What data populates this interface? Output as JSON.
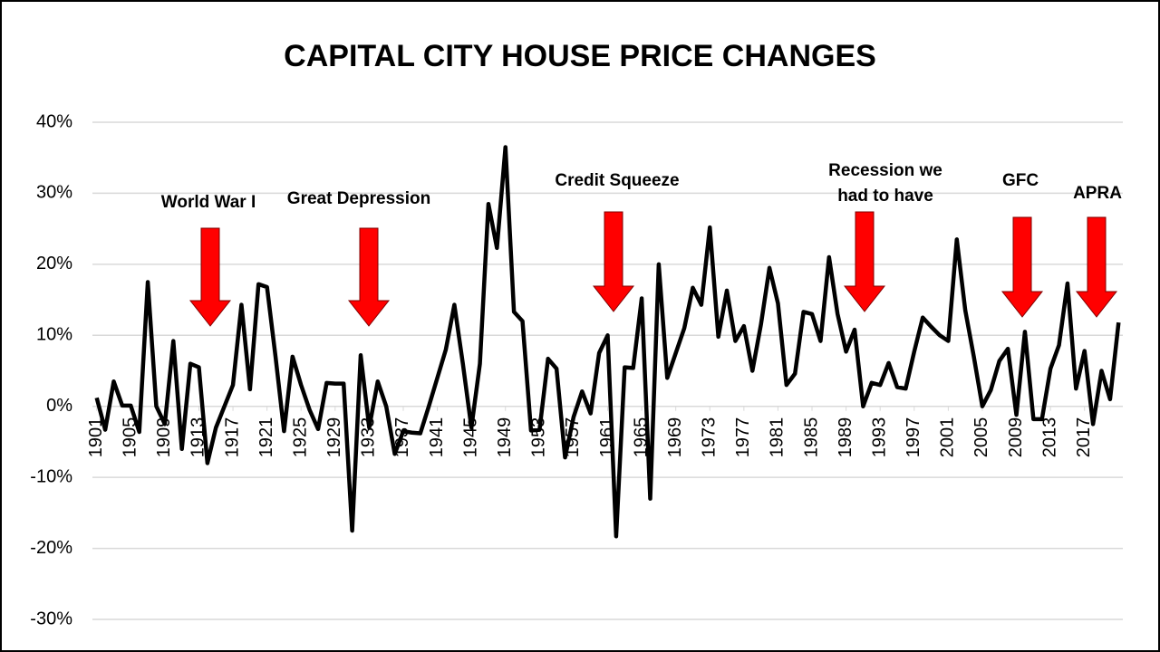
{
  "chart_data": {
    "type": "line",
    "title": "CAPITAL CITY HOUSE PRICE CHANGES",
    "x": [
      1901,
      1902,
      1903,
      1904,
      1905,
      1906,
      1907,
      1908,
      1909,
      1910,
      1911,
      1912,
      1913,
      1914,
      1915,
      1916,
      1917,
      1918,
      1919,
      1920,
      1921,
      1922,
      1923,
      1924,
      1925,
      1926,
      1927,
      1928,
      1929,
      1930,
      1931,
      1932,
      1933,
      1934,
      1935,
      1936,
      1937,
      1938,
      1939,
      1940,
      1941,
      1942,
      1943,
      1944,
      1945,
      1946,
      1947,
      1948,
      1949,
      1950,
      1951,
      1952,
      1953,
      1954,
      1955,
      1956,
      1957,
      1958,
      1959,
      1960,
      1961,
      1962,
      1963,
      1964,
      1965,
      1966,
      1967,
      1968,
      1969,
      1970,
      1971,
      1972,
      1973,
      1974,
      1975,
      1976,
      1977,
      1978,
      1979,
      1980,
      1981,
      1982,
      1983,
      1984,
      1985,
      1986,
      1987,
      1988,
      1989,
      1990,
      1991,
      1992,
      1993,
      1994,
      1995,
      1996,
      1997,
      1998,
      1999,
      2000,
      2001,
      2002,
      2003,
      2004,
      2005,
      2006,
      2007,
      2008,
      2009,
      2010,
      2011,
      2012,
      2013,
      2014,
      2015,
      2016,
      2017,
      2018,
      2019,
      2020,
      2021
    ],
    "series": [
      {
        "color": "#000000",
        "values": [
          1.2,
          -3.3,
          3.5,
          0.1,
          0.1,
          -3.6,
          17.5,
          0,
          -2.5,
          9.2,
          -6,
          6,
          5.5,
          -8,
          -3,
          0,
          3,
          14.3,
          2.4,
          17.2,
          16.8,
          7,
          -3.5,
          7,
          3,
          -0.5,
          -3.2,
          3.3,
          3.2,
          3.2,
          -17.5,
          7.2,
          -3,
          3.5,
          0,
          -6.7,
          -3.5,
          -3.7,
          -3.8,
          0,
          4,
          8,
          14.3,
          6,
          -3,
          6,
          28.5,
          22.3,
          36.5,
          13.3,
          12,
          -3.4,
          -3.3,
          6.7,
          5.3,
          -7.2,
          -1.5,
          2.1,
          -1,
          7.5,
          10,
          -18.3,
          5.5,
          5.4,
          15.2,
          -13,
          20,
          4,
          7.5,
          11,
          16.7,
          14.3,
          25.2,
          9.8,
          16.3,
          9.2,
          11.3,
          5,
          11.5,
          19.5,
          14.5,
          3,
          4.6,
          13.3,
          13,
          9.2,
          21,
          13,
          7.7,
          10.8,
          0,
          3.3,
          3,
          6.1,
          2.7,
          2.5,
          7.7,
          12.5,
          11.2,
          10,
          9.2,
          23.5,
          13.5,
          7,
          0,
          2.3,
          6.4,
          8.1,
          -1.2,
          10.5,
          -1.8,
          -1.8,
          5.3,
          8.6,
          17.3,
          2.5,
          7.8,
          -2.5,
          5,
          1,
          11.8
        ]
      }
    ],
    "xlim": [
      1900.5,
      2021.5
    ],
    "xticks": [
      1901,
      1905,
      1909,
      1913,
      1917,
      1921,
      1925,
      1929,
      1933,
      1937,
      1941,
      1945,
      1949,
      1953,
      1957,
      1961,
      1965,
      1969,
      1973,
      1977,
      1981,
      1985,
      1989,
      1993,
      1997,
      2001,
      2005,
      2009,
      2013,
      2017
    ],
    "ylim": [
      -30,
      40
    ],
    "yticks": [
      {
        "value": -30,
        "label": "-30%"
      },
      {
        "value": -20,
        "label": "-20%"
      },
      {
        "value": -10,
        "label": "-10%"
      },
      {
        "value": 0,
        "label": "0%"
      },
      {
        "value": 10,
        "label": "10%"
      },
      {
        "value": 20,
        "label": "20%"
      },
      {
        "value": 30,
        "label": "30%"
      },
      {
        "value": 40,
        "label": "40%"
      }
    ],
    "grid": true,
    "annotations": [
      "World War I",
      "Great Depression",
      "Credit Squeeze",
      "Recession we had to have",
      "GFC",
      "APRA"
    ]
  }
}
